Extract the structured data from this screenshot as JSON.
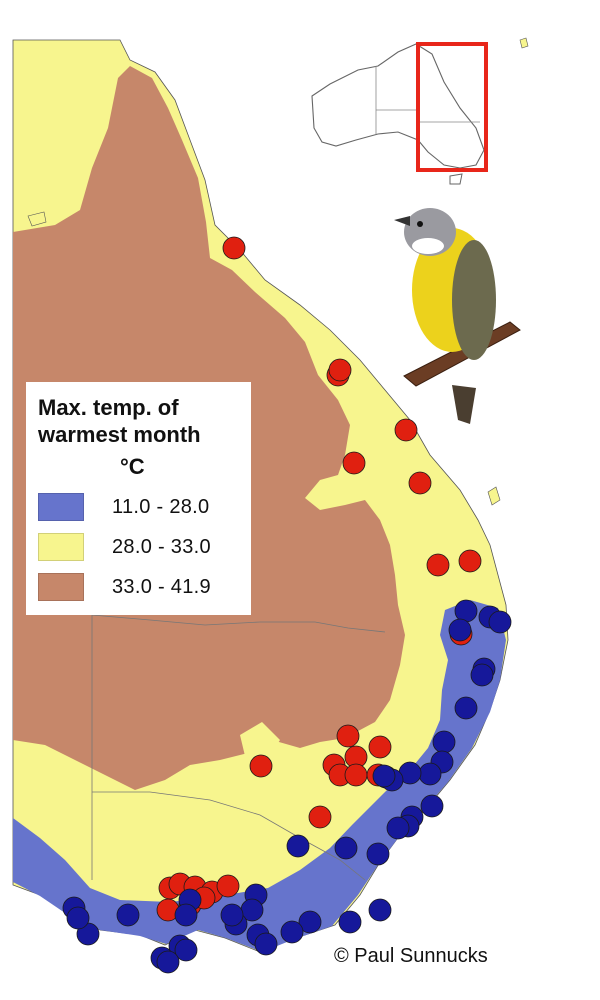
{
  "legend": {
    "title_line1": "Max. temp. of",
    "title_line2": "warmest month",
    "unit": "°C",
    "classes": [
      {
        "range": "11.0 - 28.0",
        "color": "#6674cc"
      },
      {
        "range": "28.0 - 33.0",
        "color": "#f7f58e"
      },
      {
        "range": "33.0 - 41.9",
        "color": "#c6876a"
      }
    ]
  },
  "credit": "© Paul Sunnucks",
  "colors": {
    "hot": "#c6876a",
    "warm": "#f7f58e",
    "cool": "#6674cc",
    "site_red": "#e02010",
    "site_blue": "#16189a",
    "inset_box": "#e8261a"
  },
  "site_groups": [
    {
      "name": "red-sites",
      "color": "site_red"
    },
    {
      "name": "blue-sites",
      "color": "site_blue"
    }
  ]
}
